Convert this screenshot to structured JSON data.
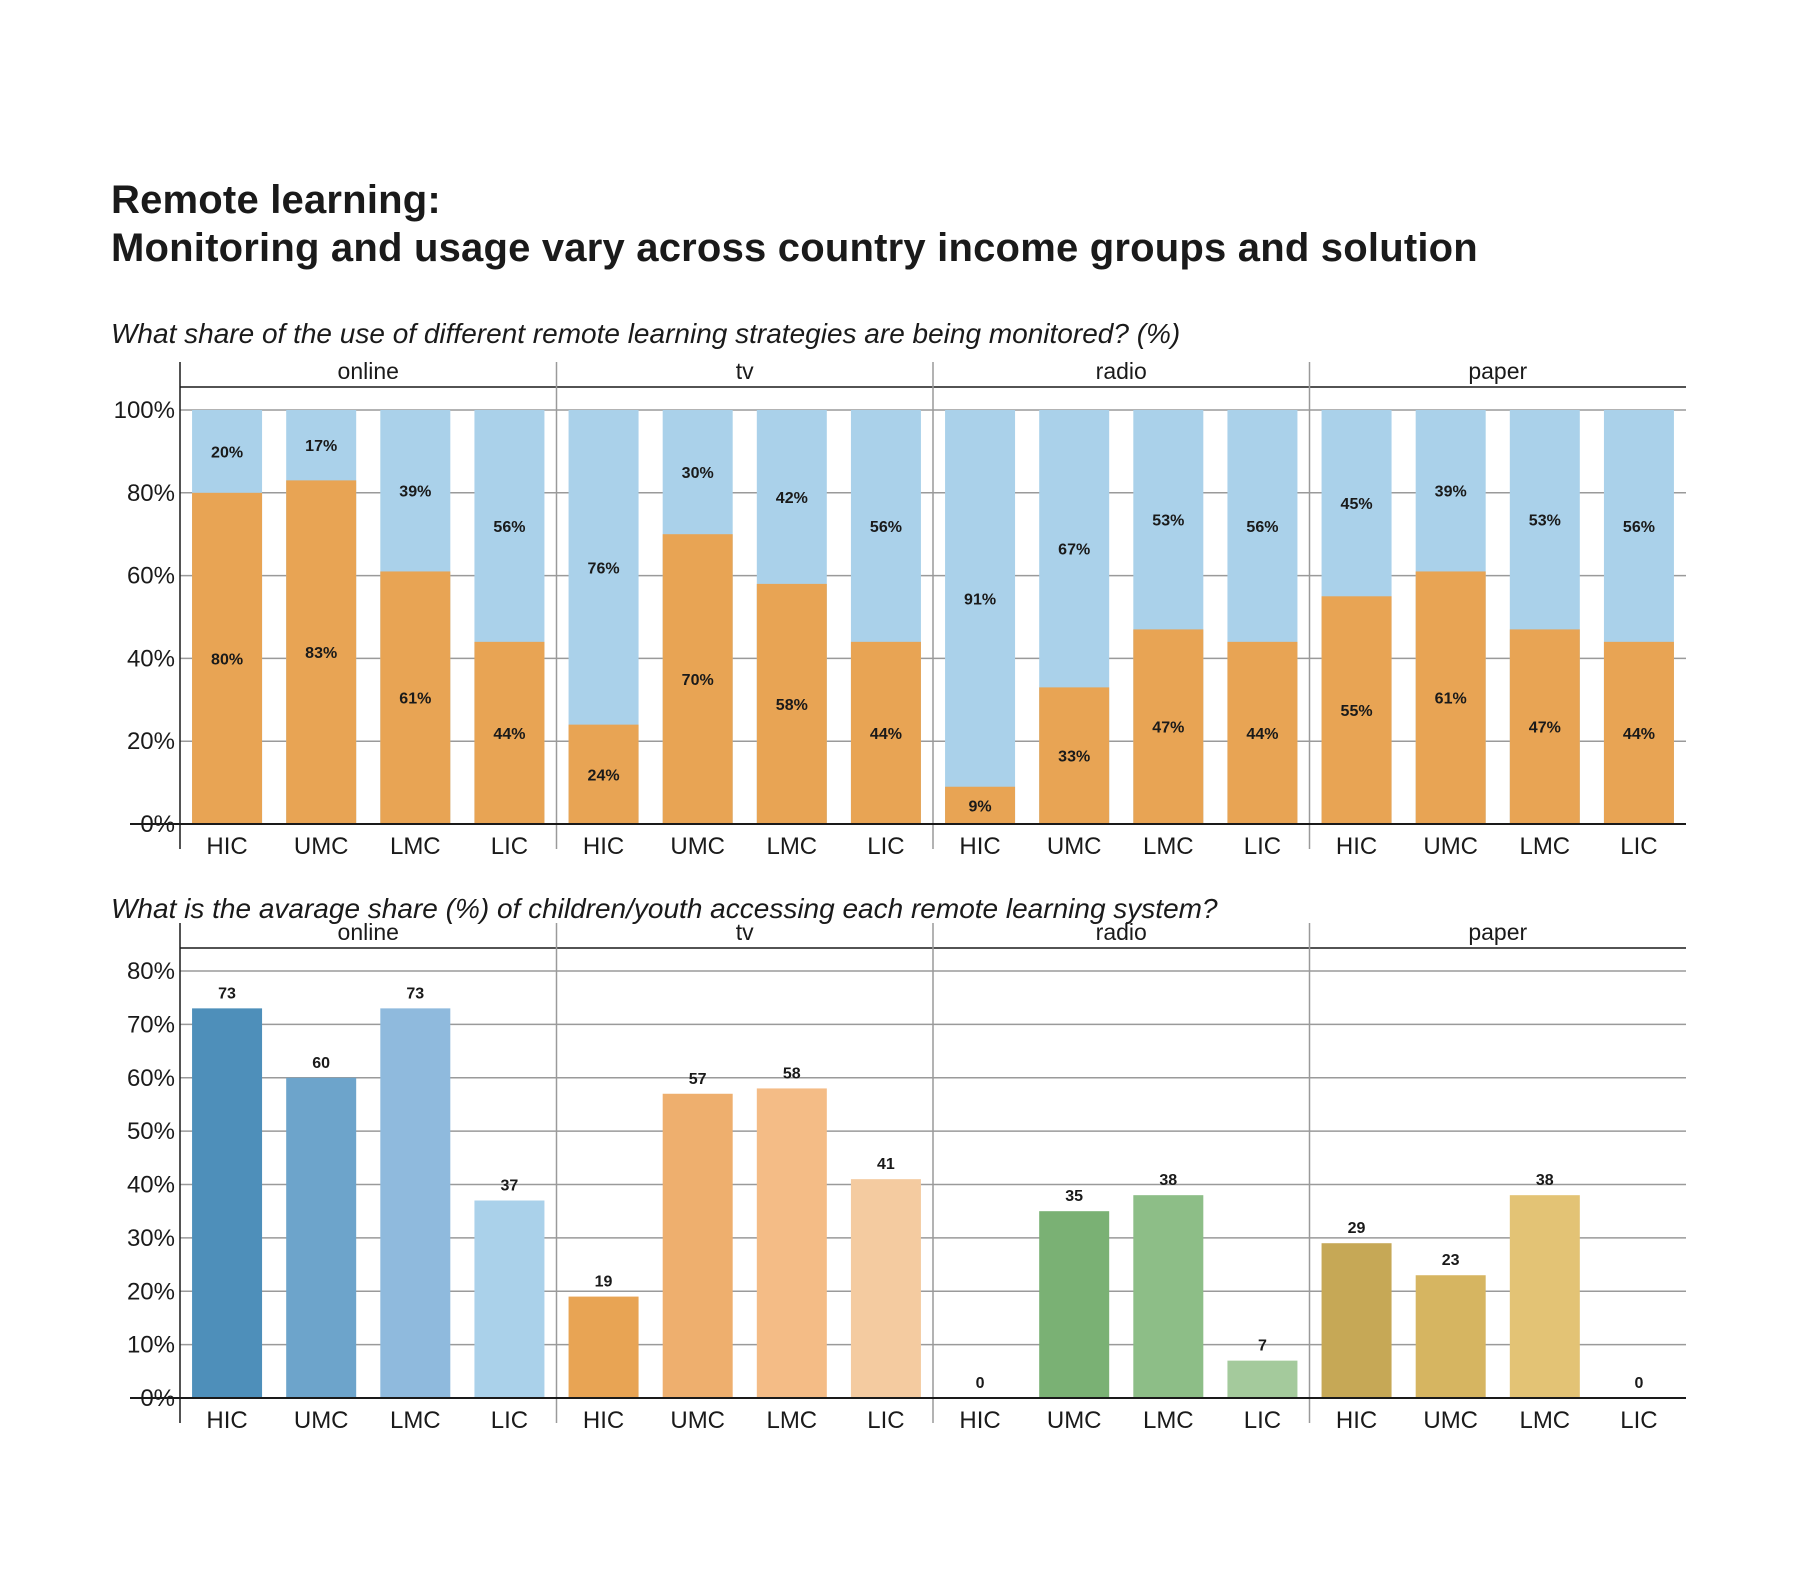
{
  "title": {
    "line1": "Remote learning:",
    "line2": "Monitoring and usage vary across country income groups and solution"
  },
  "colors": {
    "monitored": "#E8A454",
    "not_monitored": "#AAD1EA",
    "online": [
      "#4E8FBA",
      "#6DA4CB",
      "#8FBADD",
      "#AAD1EA"
    ],
    "tv": [
      "#E8A454",
      "#EEAF6E",
      "#F4BC86",
      "#F4CBA0"
    ],
    "radio": [
      "#7AB174",
      "#7AB174",
      "#8DBE87",
      "#A4CA9C"
    ],
    "paper": [
      "#C6A856",
      "#D6B561",
      "#E3C375",
      "#E8CD86"
    ],
    "grid": "#9a9a9a",
    "axis": "#1a1a1a"
  },
  "chart_data": [
    {
      "type": "bar",
      "stacked": true,
      "title": "What share of the use of different remote learning strategies are being monitored? (%)",
      "groups": [
        "online",
        "tv",
        "radio",
        "paper"
      ],
      "categories": [
        "HIC",
        "UMC",
        "LMC",
        "LIC"
      ],
      "ylim": [
        0,
        100
      ],
      "yticks": [
        "0%",
        "20%",
        "40%",
        "60%",
        "80%",
        "100%"
      ],
      "grid": true,
      "series": [
        {
          "key": "monitored",
          "values": [
            [
              80,
              83,
              61,
              44
            ],
            [
              24,
              70,
              58,
              44
            ],
            [
              9,
              33,
              47,
              44
            ],
            [
              55,
              61,
              47,
              44
            ]
          ],
          "labels": [
            [
              "80%",
              "83%",
              "61%",
              "44%"
            ],
            [
              "24%",
              "70%",
              "58%",
              "44%"
            ],
            [
              "9%",
              "33%",
              "47%",
              "44%"
            ],
            [
              "55%",
              "61%",
              "47%",
              "44%"
            ]
          ]
        },
        {
          "key": "not_monitored",
          "values": [
            [
              20,
              17,
              39,
              56
            ],
            [
              76,
              30,
              42,
              56
            ],
            [
              91,
              67,
              53,
              56
            ],
            [
              45,
              39,
              53,
              56
            ]
          ],
          "labels": [
            [
              "20%",
              "17%",
              "39%",
              "56%"
            ],
            [
              "76%",
              "30%",
              "42%",
              "56%"
            ],
            [
              "91%",
              "67%",
              "53%",
              "56%"
            ],
            [
              "45%",
              "39%",
              "53%",
              "56%"
            ]
          ]
        }
      ]
    },
    {
      "type": "bar",
      "title": "What is the avarage share (%) of children/youth accessing each remote learning system?",
      "groups": [
        "online",
        "tv",
        "radio",
        "paper"
      ],
      "categories": [
        "HIC",
        "UMC",
        "LMC",
        "LIC"
      ],
      "ylim": [
        0,
        80
      ],
      "yticks": [
        "0%",
        "10%",
        "20%",
        "30%",
        "40%",
        "50%",
        "60%",
        "70%",
        "80%"
      ],
      "grid": true,
      "values": [
        [
          73,
          60,
          73,
          37
        ],
        [
          19,
          57,
          58,
          41
        ],
        [
          0,
          35,
          38,
          7
        ],
        [
          29,
          23,
          38,
          0
        ]
      ],
      "labels": [
        [
          "73",
          "60",
          "73",
          "37"
        ],
        [
          "19",
          "57",
          "58",
          "41"
        ],
        [
          "0",
          "35",
          "38",
          "7"
        ],
        [
          "29",
          "23",
          "38",
          "0"
        ]
      ]
    }
  ]
}
